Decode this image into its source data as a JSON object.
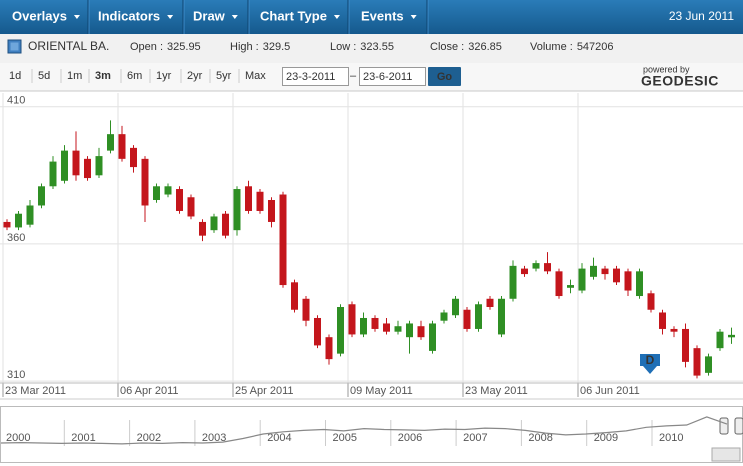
{
  "toolbar": {
    "menus": [
      "Overlays",
      "Indicators",
      "Draw",
      "Chart Type",
      "Events"
    ],
    "date": "23 Jun 2011"
  },
  "info": {
    "symbol": "ORIENTAL BA.",
    "fields": [
      {
        "label": "Open :",
        "value": 325.95
      },
      {
        "label": "High :",
        "value": 329.5
      },
      {
        "label": "Low :",
        "value": 323.55
      },
      {
        "label": "Close :",
        "value": 326.85
      },
      {
        "label": "Volume :",
        "value": 547206
      }
    ]
  },
  "range": {
    "buttons": [
      "1d",
      "5d",
      "1m",
      "3m",
      "6m",
      "1yr",
      "2yr",
      "5yr",
      "Max"
    ],
    "selected": "3m",
    "from": "23-3-2011",
    "separator": "–",
    "to": "23-6-2011",
    "go": "Go",
    "powered_by": "powered by",
    "brand": "GEODESIC"
  },
  "event_marker": "D",
  "chart_data": {
    "type": "candlestick",
    "categories": [
      "23 Mar 2011",
      null,
      null,
      null,
      null,
      null,
      null,
      null,
      null,
      null,
      "06 Apr 2011",
      null,
      null,
      null,
      null,
      null,
      null,
      null,
      null,
      null,
      "25 Apr 2011",
      null,
      null,
      null,
      null,
      null,
      null,
      null,
      null,
      null,
      "09 May 2011",
      null,
      null,
      null,
      null,
      null,
      null,
      null,
      null,
      null,
      "23 May 2011",
      null,
      null,
      null,
      null,
      null,
      null,
      null,
      null,
      null,
      "06 Jun 2011",
      null,
      null,
      null,
      null,
      null,
      null,
      null,
      null,
      null,
      null,
      null,
      null,
      null
    ],
    "open": [
      368,
      366,
      367,
      374,
      381,
      383,
      394,
      391,
      385,
      394,
      400,
      395,
      391,
      376,
      378,
      380,
      377,
      368,
      365,
      371,
      365,
      381,
      379,
      376,
      378,
      346,
      340,
      333,
      326,
      320,
      338,
      327,
      333,
      331,
      328,
      326,
      330,
      321,
      332,
      334,
      336,
      329,
      340,
      327,
      340,
      351,
      351,
      353,
      350,
      344,
      343,
      348,
      351,
      351,
      350,
      341,
      342,
      335,
      329,
      329,
      322,
      313,
      322,
      325.95
    ],
    "high": [
      369,
      372,
      376,
      382,
      392,
      396,
      401,
      392,
      395,
      405,
      403,
      396,
      392,
      382,
      382,
      381,
      378,
      369,
      371,
      372,
      381,
      383,
      380,
      377,
      379,
      347,
      341,
      334,
      327,
      338,
      339,
      335,
      334,
      333,
      332,
      332,
      332,
      332,
      336,
      341,
      337,
      339,
      341,
      341,
      354,
      352,
      354,
      357,
      351,
      347,
      353,
      355,
      352,
      352,
      351,
      351,
      343,
      336,
      330,
      331,
      323,
      320,
      329,
      329.5
    ],
    "low": [
      365,
      365,
      366,
      373,
      380,
      382,
      383,
      383,
      384,
      393,
      390,
      386,
      368,
      375,
      377,
      371,
      369,
      361,
      364,
      362,
      363,
      371,
      371,
      366,
      344,
      335,
      330,
      322,
      316,
      319,
      326,
      326,
      328,
      327,
      327,
      320,
      325,
      320,
      331,
      333,
      328,
      328,
      336,
      326,
      339,
      348,
      350,
      349,
      340,
      342,
      342,
      347,
      347,
      345,
      341,
      340,
      335,
      327,
      326,
      315,
      311,
      312,
      321,
      323.55
    ],
    "close": [
      366,
      371,
      374,
      381,
      390,
      394,
      385,
      384,
      392,
      400,
      391,
      388,
      374,
      381,
      381,
      372,
      370,
      363,
      370,
      363,
      380,
      372,
      372,
      368,
      345,
      336,
      332,
      323,
      318,
      337,
      327,
      333,
      329,
      328,
      330,
      331,
      326,
      331,
      335,
      340,
      329,
      338,
      337,
      340,
      352,
      349,
      353,
      350,
      341,
      345,
      351,
      352,
      349,
      346,
      343,
      350,
      336,
      329,
      328,
      317,
      312,
      319,
      328,
      326.85
    ],
    "up_color": "#2f8f24",
    "down_color": "#c4161c",
    "ylim": [
      309.3,
      415
    ],
    "yticks": [
      310,
      360,
      410
    ],
    "grid": true
  },
  "navigator": {
    "years": [
      "2000",
      "2001",
      "2002",
      "2003",
      "2004",
      "2005",
      "2006",
      "2007",
      "2008",
      "2009",
      "2010"
    ],
    "values": [
      20,
      21,
      20,
      19,
      20,
      19,
      18,
      20,
      19,
      21,
      20,
      22,
      30,
      40,
      45,
      48,
      50,
      47,
      52,
      50,
      49,
      48,
      51,
      50,
      53,
      52,
      48,
      42,
      38,
      40,
      43,
      47,
      55,
      58,
      60,
      78,
      62
    ],
    "ylim": [
      0,
      100
    ],
    "color": "#888888"
  }
}
